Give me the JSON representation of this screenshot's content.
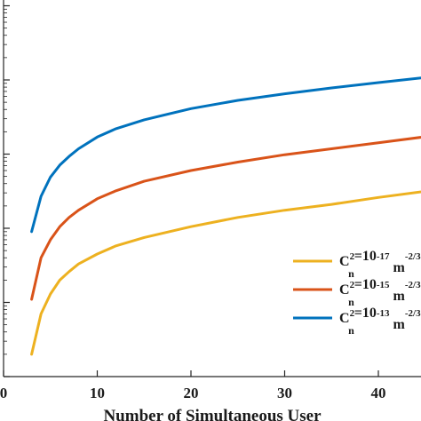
{
  "chart_data": {
    "type": "line",
    "xlabel": "Number of Simultaneous User",
    "ylabel": "",
    "y_scale": "log",
    "grid": false,
    "legend_placement": "bottom-right",
    "xlim": [
      0,
      47
    ],
    "xticks": [
      0,
      10,
      20,
      30,
      40
    ],
    "xtick_labels": [
      "0",
      "10",
      "20",
      "30",
      "40"
    ],
    "series": [
      {
        "name": "C_n^2=10^-17 m^-2/3",
        "color": "#EDB120",
        "legend_label": {
          "c": "C",
          "sup2": "2",
          "sub": "n",
          "mid": "=10",
          "exp": "-17",
          "unit": " m",
          "unitexp": "-2/3"
        },
        "x": [
          3,
          4,
          5,
          6,
          7,
          8,
          10,
          12,
          15,
          20,
          25,
          30,
          35,
          40,
          47
        ],
        "y": [
          0.02,
          0.07,
          0.13,
          0.2,
          0.26,
          0.33,
          0.45,
          0.58,
          0.75,
          1.05,
          1.4,
          1.75,
          2.1,
          2.6,
          3.4
        ]
      },
      {
        "name": "C_n^2=10^-15 m^-2/3",
        "color": "#D95319",
        "legend_label": {
          "c": "C",
          "sup2": "2",
          "sub": "n",
          "mid": "=10",
          "exp": "-15",
          "unit": " m",
          "unitexp": "-2/3"
        },
        "x": [
          3,
          4,
          5,
          6,
          7,
          8,
          10,
          12,
          15,
          20,
          25,
          30,
          35,
          40,
          47
        ],
        "y": [
          0.11,
          0.4,
          0.7,
          1.05,
          1.4,
          1.75,
          2.5,
          3.2,
          4.3,
          6.0,
          7.8,
          9.8,
          11.8,
          14.2,
          18.5
        ]
      },
      {
        "name": "C_n^2=10^-13 m^-2/3",
        "color": "#0072BD",
        "legend_label": {
          "c": "C",
          "sup2": "2",
          "sub": "n",
          "mid": "=10",
          "exp": "-13",
          "unit": " m",
          "unitexp": "-2/3"
        },
        "x": [
          3,
          4,
          5,
          6,
          7,
          8,
          10,
          12,
          15,
          20,
          25,
          30,
          35,
          40,
          47
        ],
        "y": [
          0.9,
          2.7,
          4.9,
          7.1,
          9.3,
          11.8,
          17,
          22,
          29,
          41,
          53,
          65,
          78,
          92,
          115
        ]
      }
    ]
  }
}
